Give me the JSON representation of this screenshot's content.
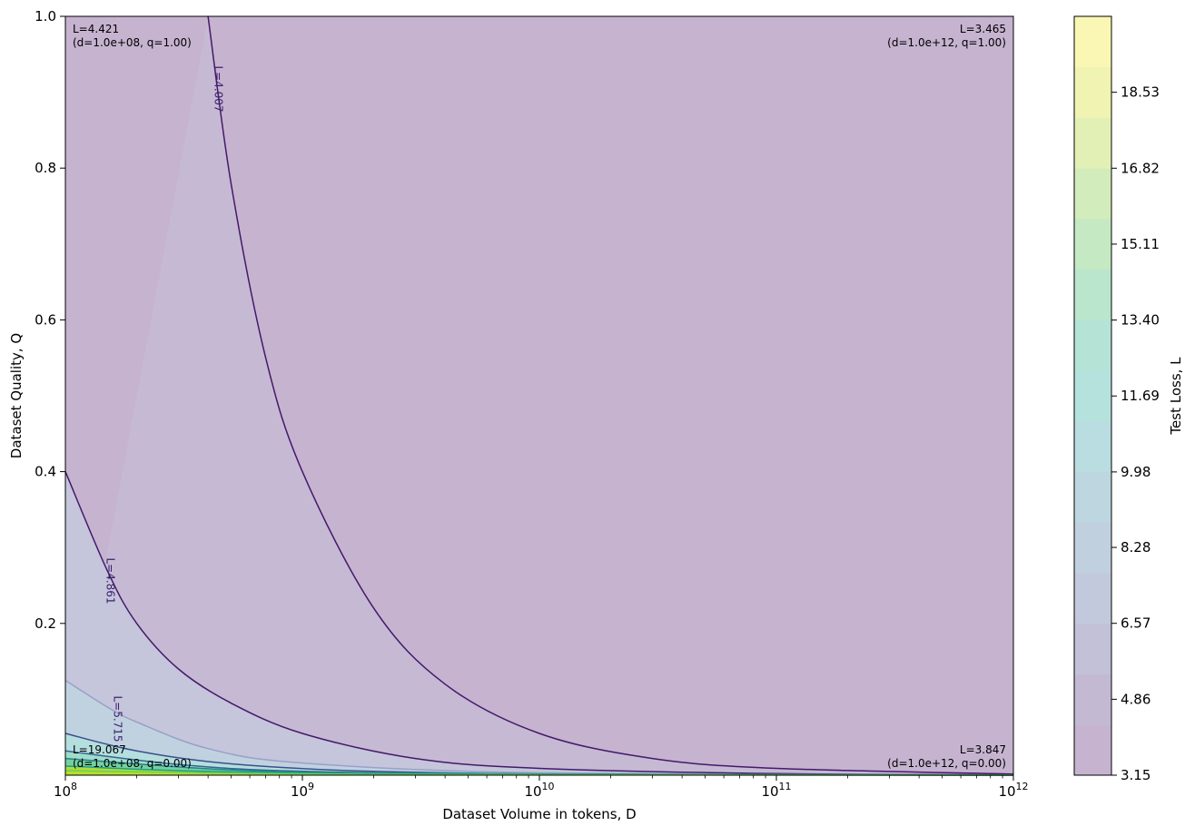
{
  "chart_data": {
    "type": "heatmap",
    "title": "",
    "xlabel": "Dataset Volume in tokens, D",
    "ylabel": "Dataset Quality, Q",
    "x_scale": "log",
    "xlim": [
      100000000,
      1000000000000
    ],
    "ylim": [
      0,
      1.0
    ],
    "x_ticks": [
      {
        "value": 100000000,
        "base": "10",
        "exp": "8"
      },
      {
        "value": 1000000000,
        "base": "10",
        "exp": "9"
      },
      {
        "value": 10000000000,
        "base": "10",
        "exp": "10"
      },
      {
        "value": 100000000000,
        "base": "10",
        "exp": "11"
      },
      {
        "value": 1000000000000,
        "base": "10",
        "exp": "12"
      }
    ],
    "y_ticks": [
      {
        "value": 0.2,
        "label": "0.2"
      },
      {
        "value": 0.4,
        "label": "0.4"
      },
      {
        "value": 0.6,
        "label": "0.6"
      },
      {
        "value": 0.8,
        "label": "0.8"
      },
      {
        "value": 1.0,
        "label": "1.0"
      }
    ],
    "colorbar": {
      "label": "Test Loss, L",
      "range": [
        3.15,
        20.24
      ],
      "ticks": [
        {
          "value": 3.15,
          "label": "3.15"
        },
        {
          "value": 4.86,
          "label": "4.86"
        },
        {
          "value": 6.57,
          "label": "6.57"
        },
        {
          "value": 8.28,
          "label": "8.28"
        },
        {
          "value": 9.98,
          "label": "9.98"
        },
        {
          "value": 11.69,
          "label": "11.69"
        },
        {
          "value": 13.4,
          "label": "13.40"
        },
        {
          "value": 15.11,
          "label": "15.11"
        },
        {
          "value": 16.82,
          "label": "16.82"
        },
        {
          "value": 18.53,
          "label": "18.53"
        }
      ]
    },
    "contours": [
      {
        "level": 4.007,
        "label": "L=4.007",
        "color": "#44196b",
        "points": [
          [
            400000000,
            1.0
          ],
          [
            500000000,
            0.78
          ],
          [
            700000000,
            0.55
          ],
          [
            1000000000,
            0.4
          ],
          [
            2000000000,
            0.22
          ],
          [
            4000000000,
            0.12
          ],
          [
            10000000000,
            0.055
          ],
          [
            30000000000,
            0.022
          ],
          [
            100000000000,
            0.009
          ],
          [
            1000000000000,
            0.0015
          ]
        ]
      },
      {
        "level": 4.861,
        "label": "L=4.861",
        "color": "#44196b",
        "points": [
          [
            100000000,
            0.4
          ],
          [
            150000000,
            0.27
          ],
          [
            200000000,
            0.2
          ],
          [
            300000000,
            0.14
          ],
          [
            500000000,
            0.095
          ],
          [
            1000000000,
            0.055
          ],
          [
            3000000000,
            0.022
          ],
          [
            10000000000,
            0.009
          ],
          [
            100000000000,
            0.002
          ],
          [
            1000000000000,
            0.0004
          ]
        ]
      },
      {
        "level": 5.715,
        "label": "L=5.715",
        "color": "#9aa0c8",
        "points": [
          [
            100000000,
            0.125
          ],
          [
            150000000,
            0.09
          ],
          [
            200000000,
            0.07
          ],
          [
            400000000,
            0.035
          ],
          [
            1000000000,
            0.016
          ],
          [
            10000000000,
            0.003
          ],
          [
            1000000000000,
            0.0001
          ]
        ]
      },
      {
        "level": 6.57,
        "label": "",
        "color": "#3c4f8a",
        "points": [
          [
            100000000,
            0.055
          ],
          [
            200000000,
            0.032
          ],
          [
            500000000,
            0.015
          ],
          [
            2000000000,
            0.005
          ],
          [
            20000000000,
            0.001
          ],
          [
            1000000000000,
            0.0001
          ]
        ]
      },
      {
        "level": 8.28,
        "label": "",
        "color": "#31688e",
        "points": [
          [
            100000000,
            0.032
          ],
          [
            300000000,
            0.014
          ],
          [
            1000000000,
            0.005
          ],
          [
            10000000000,
            0.001
          ],
          [
            1000000000000,
            0.0001
          ]
        ]
      },
      {
        "level": 9.98,
        "label": "",
        "color": "#26828e",
        "points": [
          [
            100000000,
            0.022
          ],
          [
            500000000,
            0.007
          ],
          [
            3000000000,
            0.002
          ],
          [
            1000000000000,
            0.0001
          ]
        ]
      },
      {
        "level": 13.4,
        "label": "",
        "color": "#1f9e89",
        "points": [
          [
            100000000,
            0.012
          ],
          [
            1000000000,
            0.003
          ],
          [
            1000000000000,
            0.0001
          ]
        ]
      },
      {
        "level": 16.82,
        "label": "",
        "color": "#6ece58",
        "points": [
          [
            100000000,
            0.006
          ],
          [
            2000000000,
            0.001
          ],
          [
            1000000000000,
            0.0001
          ]
        ]
      }
    ],
    "annotations": [
      {
        "line1": "L=4.421",
        "line2": "(d=1.0e+08, q=1.00)",
        "x": 100000000,
        "y": 1.0,
        "anchor": "start",
        "valign": "top"
      },
      {
        "line1": "L=3.465",
        "line2": "(d=1.0e+12, q=1.00)",
        "x": 1000000000000,
        "y": 1.0,
        "anchor": "end",
        "valign": "top"
      },
      {
        "line1": "L=19.067",
        "line2": "(d=1.0e+08, q=0.00)",
        "x": 100000000,
        "y": 0.0,
        "anchor": "start",
        "valign": "bottom"
      },
      {
        "line1": "L=3.847",
        "line2": "(d=1.0e+12, q=0.00)",
        "x": 1000000000000,
        "y": 0.0,
        "anchor": "end",
        "valign": "bottom"
      }
    ],
    "grid": false,
    "legend": "none"
  }
}
